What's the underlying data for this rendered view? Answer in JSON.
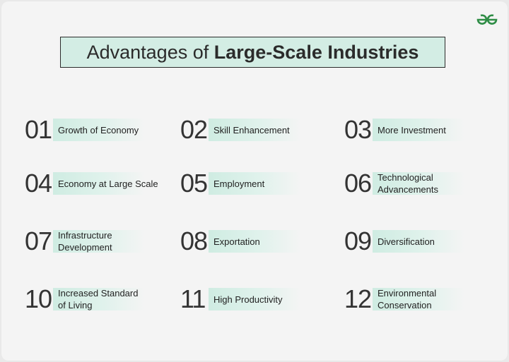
{
  "header": {
    "title_regular": "Advantages of",
    "title_bold": "Large-Scale Industries"
  },
  "items": [
    {
      "number": "01",
      "lines": [
        "Growth of Economy"
      ]
    },
    {
      "number": "02",
      "lines": [
        "Skill Enhancement"
      ]
    },
    {
      "number": "03",
      "lines": [
        "More Investment"
      ]
    },
    {
      "number": "04",
      "lines": [
        "Economy at Large Scale"
      ]
    },
    {
      "number": "05",
      "lines": [
        "Employment"
      ]
    },
    {
      "number": "06",
      "lines": [
        "Technological",
        "Advancements"
      ]
    },
    {
      "number": "07",
      "lines": [
        "Infrastructure",
        "Development"
      ]
    },
    {
      "number": "08",
      "lines": [
        "Exportation"
      ]
    },
    {
      "number": "09",
      "lines": [
        "Diversification"
      ]
    },
    {
      "number": "10",
      "lines": [
        "Increased Standard",
        "of Living"
      ]
    },
    {
      "number": "11",
      "lines": [
        "High Productivity"
      ]
    },
    {
      "number": "12",
      "lines": [
        "Environmental",
        "Conservation"
      ]
    }
  ]
}
